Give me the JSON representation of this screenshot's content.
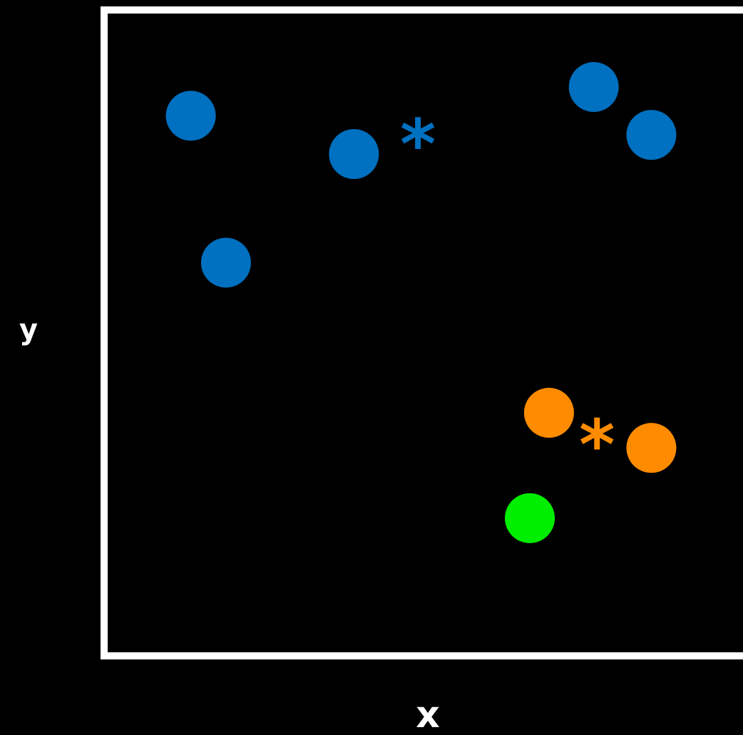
{
  "chart_data": {
    "type": "scatter",
    "xlabel": "x",
    "ylabel": "y",
    "xlim": [
      0,
      1
    ],
    "ylim": [
      0,
      1
    ],
    "grid": false,
    "background": "#000000",
    "frame_color": "#ffffff",
    "series": [
      {
        "color": "#0070c0",
        "points": [
          {
            "x": 0.13,
            "y": 0.84
          },
          {
            "x": 0.385,
            "y": 0.78
          },
          {
            "x": 0.185,
            "y": 0.61
          },
          {
            "x": 0.76,
            "y": 0.885
          },
          {
            "x": 0.85,
            "y": 0.81
          }
        ]
      },
      {
        "color": "#ff8c00",
        "points": [
          {
            "x": 0.69,
            "y": 0.375
          },
          {
            "x": 0.85,
            "y": 0.32
          }
        ]
      },
      {
        "color": "#00ee00",
        "points": [
          {
            "x": 0.66,
            "y": 0.21
          }
        ]
      }
    ],
    "markers": [
      {
        "symbol": "*",
        "color": "#0070c0",
        "x": 0.485,
        "y": 0.8
      },
      {
        "symbol": "*",
        "color": "#ff8c00",
        "x": 0.765,
        "y": 0.33
      }
    ]
  }
}
